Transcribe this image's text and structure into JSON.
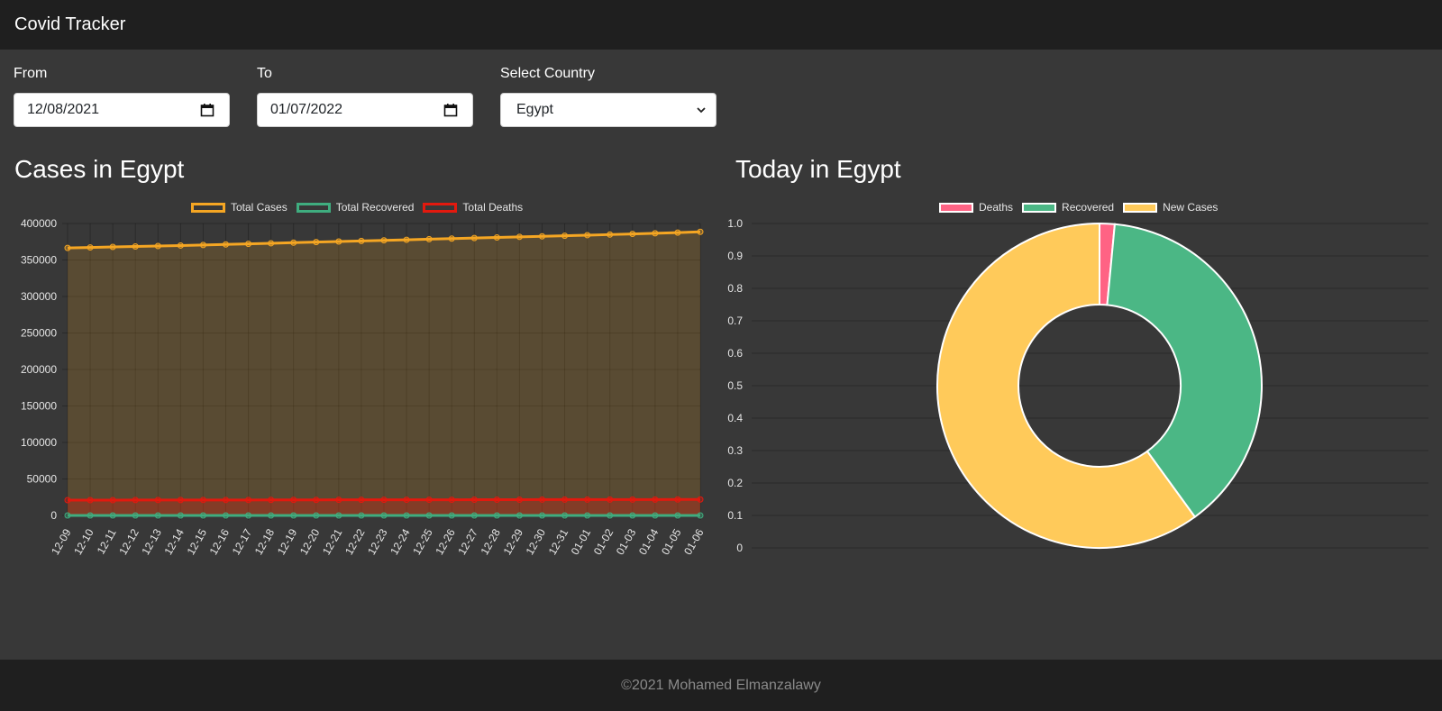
{
  "header": {
    "title": "Covid Tracker"
  },
  "filters": {
    "from_label": "From",
    "from_value": "12/08/2021",
    "to_label": "To",
    "to_value": "01/07/2022",
    "country_label": "Select Country",
    "country_value": "Egypt"
  },
  "sections": {
    "cases_title": "Cases in Egypt",
    "today_title": "Today in Egypt"
  },
  "colors": {
    "total_cases": "#f5a623",
    "total_recovered": "#3fad7f",
    "total_deaths": "#e3190e",
    "deaths": "#ff6384",
    "recovered": "#4bb785",
    "new_cases": "#ffca5a"
  },
  "chart_data": [
    {
      "type": "line",
      "x": [
        "12-09",
        "12-10",
        "12-11",
        "12-12",
        "12-13",
        "12-14",
        "12-15",
        "12-16",
        "12-17",
        "12-18",
        "12-19",
        "12-20",
        "12-21",
        "12-22",
        "12-23",
        "12-24",
        "12-25",
        "12-26",
        "12-27",
        "12-28",
        "12-29",
        "12-30",
        "12-31",
        "01-01",
        "01-02",
        "01-03",
        "01-04",
        "01-05",
        "01-06"
      ],
      "series": [
        {
          "name": "Total Cases",
          "values": [
            366500,
            367200,
            367900,
            368500,
            369100,
            369800,
            370500,
            371300,
            372100,
            372900,
            373700,
            374500,
            375300,
            376100,
            376900,
            377700,
            378500,
            379300,
            380100,
            380900,
            381700,
            382400,
            383200,
            384000,
            384800,
            385700,
            386600,
            387500,
            388600
          ]
        },
        {
          "name": "Total Recovered",
          "values": [
            0,
            0,
            0,
            0,
            0,
            0,
            0,
            0,
            0,
            0,
            0,
            0,
            0,
            0,
            0,
            0,
            0,
            0,
            0,
            0,
            0,
            0,
            0,
            0,
            0,
            0,
            0,
            0,
            0
          ]
        },
        {
          "name": "Total Deaths",
          "values": [
            21000,
            21000,
            21000,
            21100,
            21100,
            21100,
            21200,
            21200,
            21200,
            21300,
            21300,
            21300,
            21400,
            21400,
            21400,
            21500,
            21500,
            21500,
            21600,
            21600,
            21600,
            21700,
            21700,
            21700,
            21800,
            21800,
            21800,
            21900,
            21900
          ]
        }
      ],
      "yticks": [
        "0",
        "50000",
        "100000",
        "150000",
        "200000",
        "250000",
        "300000",
        "350000",
        "400000"
      ],
      "ylim": [
        0,
        400000
      ],
      "grid": true,
      "legend_position": "top-center"
    },
    {
      "type": "pie",
      "labels": [
        "Deaths",
        "Recovered",
        "New Cases"
      ],
      "values": [
        0.015,
        0.385,
        0.6
      ],
      "yticks": [
        "0",
        "0.1",
        "0.2",
        "0.3",
        "0.4",
        "0.5",
        "0.6",
        "0.7",
        "0.8",
        "0.9",
        "1.0"
      ],
      "ylim": [
        0,
        1
      ],
      "grid": true,
      "legend_position": "top-center"
    }
  ],
  "footer": {
    "text": "©2021 Mohamed Elmanzalawy"
  }
}
